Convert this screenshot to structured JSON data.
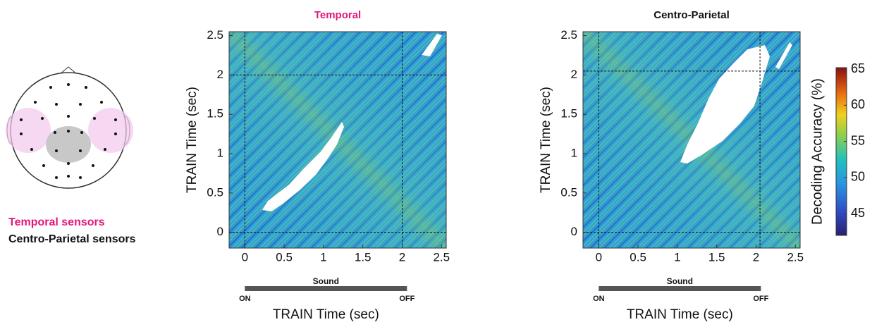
{
  "chart_data": [
    {
      "type": "heatmap",
      "title": "Temporal",
      "title_color": "#e5187a",
      "xlabel": "TRAIN  Time (sec)",
      "ylabel": "TRAIN  Time (sec)",
      "xlim": [
        -0.2,
        2.56
      ],
      "ylim": [
        -0.2,
        2.55
      ],
      "xticks": [
        0,
        0.5,
        1,
        1.5,
        2,
        2.5
      ],
      "yticks": [
        0,
        0.5,
        1,
        1.5,
        2,
        2.5
      ],
      "event_lines": [
        0,
        2
      ],
      "annotation": {
        "label": "Sound",
        "start": "ON",
        "end": "OFF"
      }
    },
    {
      "type": "heatmap",
      "title": "Centro-Parietal",
      "title_color": "#111111",
      "xlabel": "TRAIN  Time (sec)",
      "ylabel": "TRAIN  Time (sec)",
      "xlim": [
        -0.2,
        2.56
      ],
      "ylim": [
        -0.2,
        2.55
      ],
      "xticks": [
        0,
        0.5,
        1,
        1.5,
        2,
        2.5
      ],
      "yticks": [
        0,
        0.5,
        1,
        1.5,
        2,
        2.5
      ],
      "event_lines": [
        0,
        2.05
      ],
      "annotation": {
        "label": "Sound",
        "start": "ON",
        "end": "OFF"
      }
    }
  ],
  "colorbar": {
    "label": "Decoding Accuracy (%)",
    "clim": [
      42,
      65.2
    ],
    "ticks": [
      45,
      50,
      55,
      60,
      65
    ]
  },
  "head_legend": {
    "temporal": "Temporal sensors",
    "centro_parietal": "Centro-Parietal sensors"
  }
}
